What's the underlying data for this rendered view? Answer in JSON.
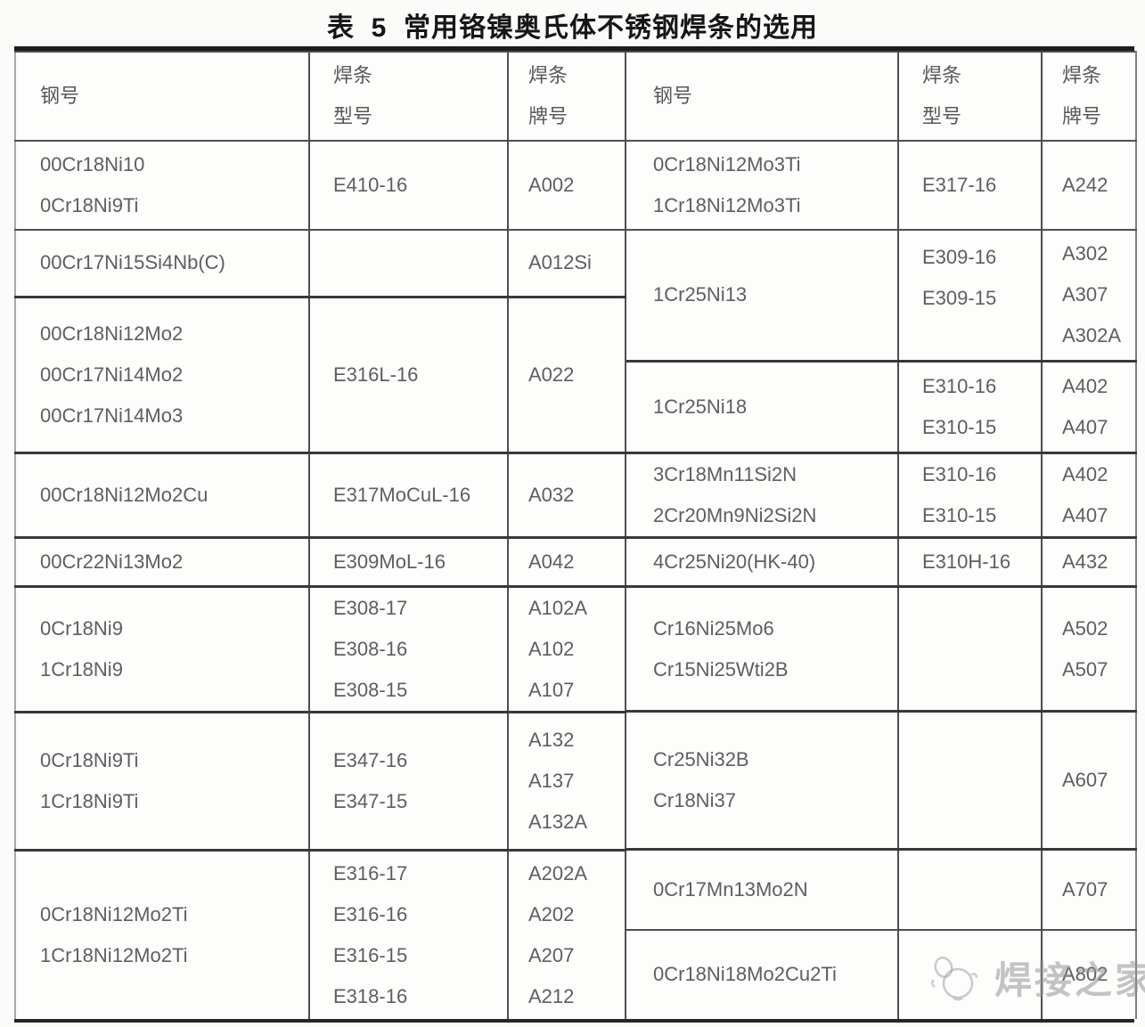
{
  "title": "表  5  常用铬镍奥氏体不锈钢焊条的选用",
  "columns": {
    "steel": "钢号",
    "type": [
      "焊条",
      "型号"
    ],
    "brand": [
      "焊条",
      "牌号"
    ]
  },
  "left_table": {
    "rows": [
      {
        "steel": [
          "00Cr18Ni10",
          "0Cr18Ni9Ti"
        ],
        "type": [
          "E410-16"
        ],
        "brand": [
          "A002"
        ]
      },
      {
        "steel": [
          "00Cr17Ni15Si4Nb(C)"
        ],
        "type": [],
        "brand": [
          "A012Si"
        ]
      },
      {
        "steel": [
          "00Cr18Ni12Mo2",
          "00Cr17Ni14Mo2",
          "00Cr17Ni14Mo3"
        ],
        "type": [
          "E316L-16"
        ],
        "brand": [
          "A022"
        ]
      },
      {
        "steel": [
          "00Cr18Ni12Mo2Cu"
        ],
        "type": [
          "E317MoCuL-16"
        ],
        "brand": [
          "A032"
        ]
      },
      {
        "steel": [
          "00Cr22Ni13Mo2"
        ],
        "type": [
          "E309MoL-16"
        ],
        "brand": [
          "A042"
        ]
      },
      {
        "steel": [
          "0Cr18Ni9",
          "1Cr18Ni9"
        ],
        "type": [
          "E308-17",
          "E308-16",
          "E308-15"
        ],
        "brand": [
          "A102A",
          "A102",
          "A107"
        ]
      },
      {
        "steel": [
          "0Cr18Ni9Ti",
          "1Cr18Ni9Ti"
        ],
        "type": [
          "E347-16",
          "E347-15"
        ],
        "brand": [
          "A132",
          "A137",
          "A132A"
        ]
      },
      {
        "steel": [
          "0Cr18Ni12Mo2Ti",
          "1Cr18Ni12Mo2Ti"
        ],
        "type": [
          "E316-17",
          "E316-16",
          "E316-15",
          "E318-16"
        ],
        "brand": [
          "A202A",
          "A202",
          "A207",
          "A212"
        ]
      }
    ]
  },
  "right_table": {
    "rows": [
      {
        "steel": [
          "0Cr18Ni12Mo3Ti",
          "1Cr18Ni12Mo3Ti"
        ],
        "type": [
          "E317-16"
        ],
        "brand": [
          "A242"
        ]
      },
      {
        "steel": [
          "1Cr25Ni13"
        ],
        "type": [
          "E309-16",
          "E309-15"
        ],
        "brand": [
          "A302",
          "A307",
          "A302A"
        ]
      },
      {
        "steel": [
          "1Cr25Ni18"
        ],
        "type": [
          "E310-16",
          "E310-15"
        ],
        "brand": [
          "A402",
          "A407"
        ]
      },
      {
        "steel": [
          "3Cr18Mn11Si2N",
          "2Cr20Mn9Ni2Si2N"
        ],
        "type": [
          "E310-16",
          "E310-15"
        ],
        "brand": [
          "A402",
          "A407"
        ]
      },
      {
        "steel": [
          "4Cr25Ni20(HK-40)"
        ],
        "type": [
          "E310H-16"
        ],
        "brand": [
          "A432"
        ]
      },
      {
        "steel": [
          "Cr16Ni25Mo6",
          "Cr15Ni25Wti2B"
        ],
        "type": [],
        "brand": [
          "A502",
          "A507"
        ]
      },
      {
        "steel": [
          "Cr25Ni32B",
          "Cr18Ni37"
        ],
        "type": [],
        "brand": [
          "A607"
        ]
      },
      {
        "steel": [
          "0Cr17Mn13Mo2N"
        ],
        "type": [],
        "brand": [
          "A707"
        ]
      },
      {
        "steel": [
          "0Cr18Ni18Mo2Cu2Ti"
        ],
        "type": [],
        "brand": [
          "A802"
        ]
      }
    ]
  },
  "watermark": {
    "text": "焊接之家"
  },
  "colors": {
    "background": "#fbfbfa",
    "border": "#4e4e4e",
    "frame": "#1d1d1d",
    "cell_text": "#5e5e5e",
    "title_text": "#161616",
    "watermark_text": "#949494"
  }
}
